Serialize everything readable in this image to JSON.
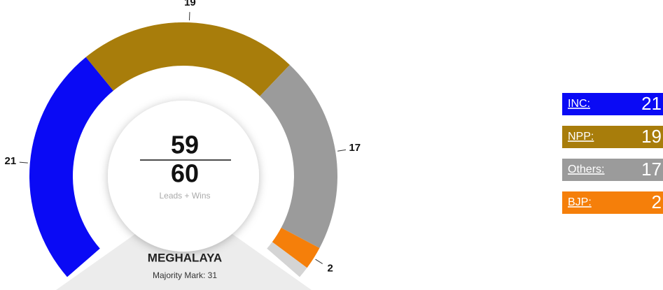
{
  "chart_data": {
    "type": "donut",
    "series": [
      {
        "name": "INC:",
        "color": "#0a0af5",
        "values": [
          21
        ]
      },
      {
        "name": "NPP:",
        "color": "#a87d0b",
        "values": [
          19
        ]
      },
      {
        "name": "Others:",
        "color": "#9b9b9b",
        "values": [
          17
        ]
      },
      {
        "name": "BJP:",
        "color": "#f57f0a",
        "values": [
          2
        ]
      }
    ],
    "remainder_color": "#d4d4d4",
    "leads_wins": 59,
    "total": 60,
    "center_label": "Leads + Wins",
    "state": "MEGHALAYA",
    "majority": "Majority Mark: 31"
  }
}
